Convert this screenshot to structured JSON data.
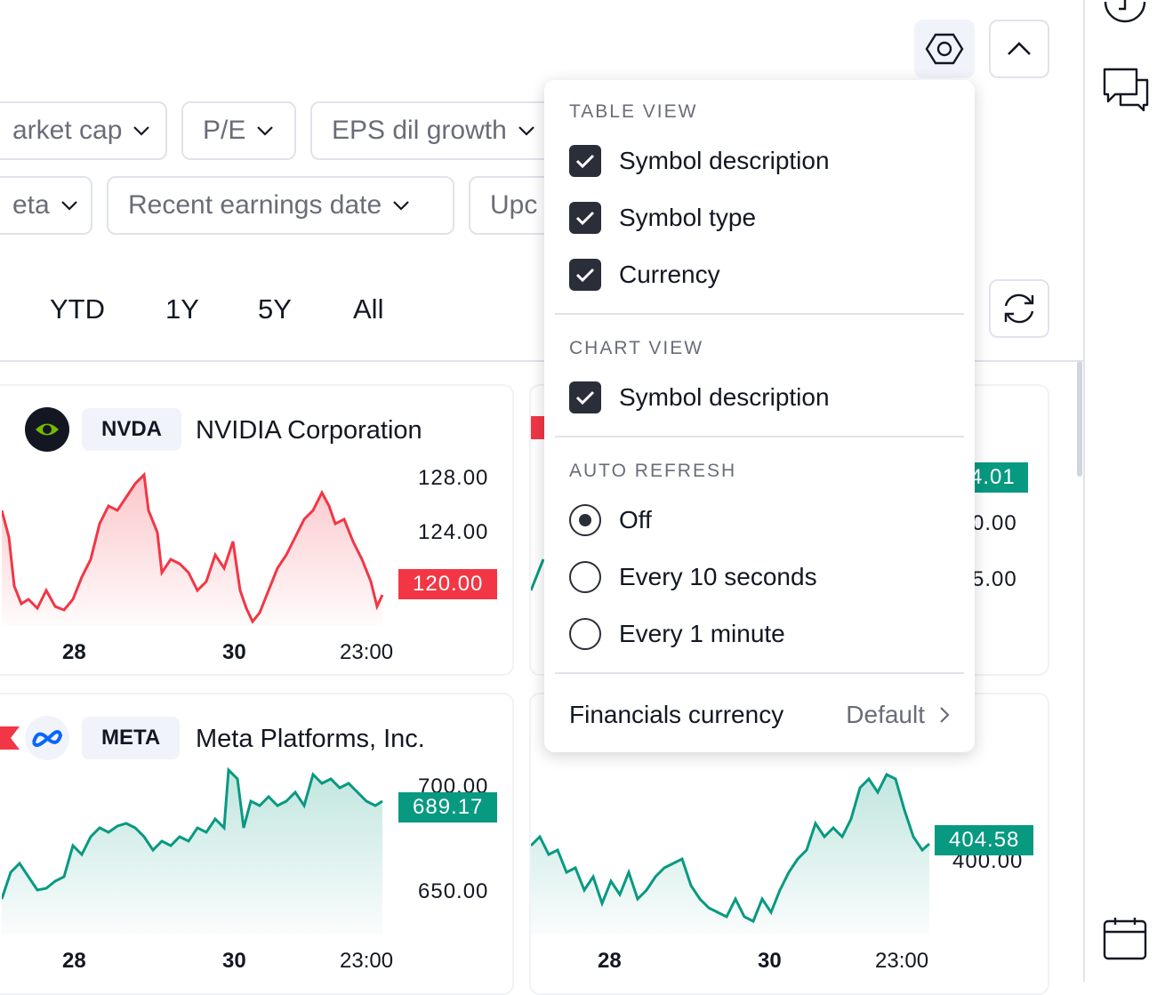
{
  "filters_row1": [
    {
      "label": "arket cap"
    },
    {
      "label": "P/E"
    },
    {
      "label": "EPS dil growth"
    }
  ],
  "filters_row2": [
    {
      "label": "eta"
    },
    {
      "label": "Recent earnings date"
    },
    {
      "label": "Upc"
    }
  ],
  "periods": [
    "YTD",
    "1Y",
    "5Y",
    "All"
  ],
  "cards": {
    "nvda": {
      "ticker": "NVDA",
      "name": "NVIDIA Corporation",
      "y_labels": [
        "128.00",
        "124.00"
      ],
      "last": "120.00",
      "x_labels": [
        "28",
        "30",
        "23:00"
      ]
    },
    "right_top": {
      "last": "4.01",
      "y_labels": [
        "0.00",
        "5.00"
      ]
    },
    "meta": {
      "ticker": "META",
      "name": "Meta Platforms, Inc.",
      "y_labels": [
        "700.00",
        "650.00"
      ],
      "last": "689.17",
      "x_labels": [
        "28",
        "30",
        "23:00"
      ]
    },
    "right_bottom": {
      "last": "404.58",
      "y_labels": [
        "400.00"
      ],
      "x_labels": [
        "28",
        "30",
        "23:00"
      ]
    }
  },
  "colors": {
    "down": "#f23645",
    "up": "#089981",
    "dark": "#2a2e39"
  },
  "menu": {
    "table_view": {
      "title": "TABLE VIEW",
      "items": [
        {
          "label": "Symbol description",
          "checked": true
        },
        {
          "label": "Symbol type",
          "checked": true
        },
        {
          "label": "Currency",
          "checked": true
        }
      ]
    },
    "chart_view": {
      "title": "CHART VIEW",
      "items": [
        {
          "label": "Symbol description",
          "checked": true
        }
      ]
    },
    "auto_refresh": {
      "title": "AUTO REFRESH",
      "options": [
        {
          "label": "Off",
          "selected": true
        },
        {
          "label": "Every 10 seconds",
          "selected": false
        },
        {
          "label": "Every 1 minute",
          "selected": false
        }
      ]
    },
    "financials_currency": {
      "label": "Financials currency",
      "value": "Default"
    }
  }
}
